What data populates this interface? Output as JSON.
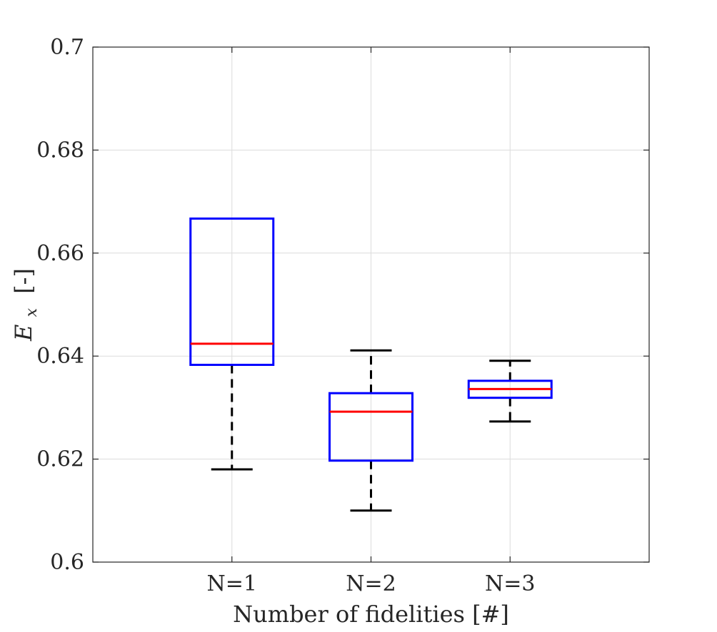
{
  "chart_data": {
    "type": "boxplot",
    "title": "",
    "xlabel": "Number of fidelities [#]",
    "ylabel": {
      "symbol": "E",
      "subscript": "x",
      "unit": "[-]"
    },
    "categories": [
      "N=1",
      "N=2",
      "N=3"
    ],
    "ylim": [
      0.6,
      0.7
    ],
    "yticks": [
      0.6,
      0.62,
      0.64,
      0.66,
      0.68,
      0.7
    ],
    "ytick_labels": [
      "0.6",
      "0.62",
      "0.64",
      "0.66",
      "0.68",
      "0.7"
    ],
    "grid": true,
    "boxes": [
      {
        "category": "N=1",
        "whisker_low": 0.618,
        "q1": 0.6383,
        "median": 0.6424,
        "q3": 0.6667,
        "whisker_high": 0.6667
      },
      {
        "category": "N=2",
        "whisker_low": 0.61,
        "q1": 0.6197,
        "median": 0.6292,
        "q3": 0.6328,
        "whisker_high": 0.6411
      },
      {
        "category": "N=3",
        "whisker_low": 0.6273,
        "q1": 0.6319,
        "median": 0.6336,
        "q3": 0.6352,
        "whisker_high": 0.6391
      }
    ],
    "colors": {
      "box": "#0000ff",
      "median": "#ff0000",
      "whisker": "#000000",
      "grid": "#dcdcdc",
      "axis": "#262626"
    }
  }
}
